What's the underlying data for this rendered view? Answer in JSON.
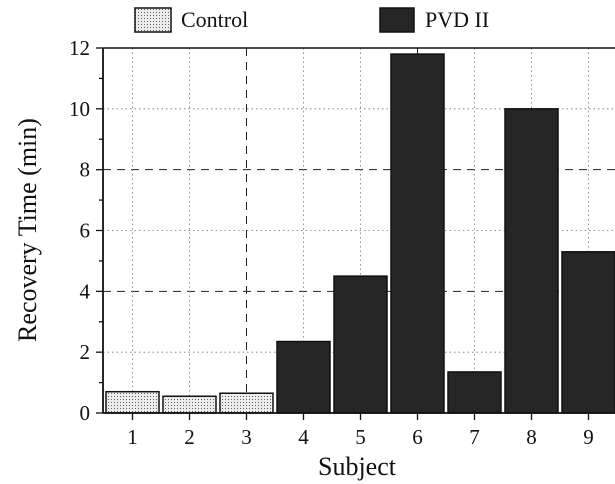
{
  "chart_data": {
    "type": "bar",
    "title": "",
    "xlabel": "Subject",
    "ylabel": "Recovery Time (min)",
    "ylim": [
      0,
      12
    ],
    "yticks": [
      0,
      2,
      4,
      6,
      8,
      10,
      12
    ],
    "grid": true,
    "legend_position": "top",
    "categories": [
      "1",
      "2",
      "3",
      "4",
      "5",
      "6",
      "7",
      "8",
      "9"
    ],
    "series": [
      {
        "name": "Control",
        "color": "#e6e6e6",
        "pattern": "dotted-fill",
        "values": [
          0.7,
          0.55,
          0.65,
          null,
          null,
          null,
          null,
          null,
          null
        ]
      },
      {
        "name": "PVD II",
        "color": "#262626",
        "values": [
          null,
          null,
          null,
          2.35,
          4.5,
          11.8,
          1.35,
          10.0,
          5.3
        ]
      }
    ]
  }
}
